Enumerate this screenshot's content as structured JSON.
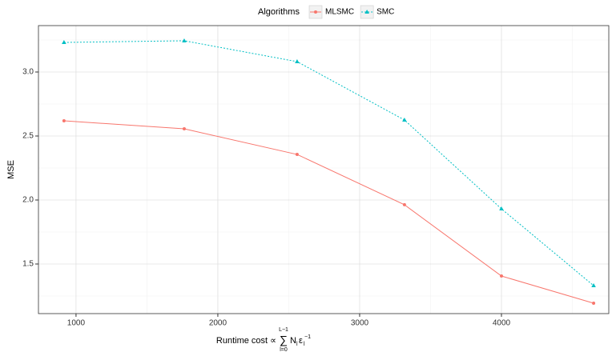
{
  "chart_data": {
    "type": "line",
    "x_label": {
      "prefix": "Runtime cost ∝",
      "sum": "∑",
      "upper": "L−1",
      "lower": "l=0",
      "n": "N",
      "n_sub": "l",
      "eps": "ε",
      "eps_sub": "l",
      "eps_sup": "−1"
    },
    "y_label": "MSE",
    "legend_title": "Algorithms",
    "legend_position": "top",
    "grid": true,
    "xlim": [
      735,
      4757
    ],
    "xticks": [
      1000,
      2000,
      3000,
      4000
    ],
    "minor_xticks": [
      1500,
      2500,
      3500,
      4500
    ],
    "ylim": [
      1.1125,
      3.3625
    ],
    "yticks": [
      {
        "value": 1.5,
        "label": "1.5"
      },
      {
        "value": 2,
        "label": "2.0"
      },
      {
        "value": 2.5,
        "label": "2.5"
      },
      {
        "value": 3,
        "label": "3.0"
      }
    ],
    "minor_yticks": [
      1.25,
      1.75,
      2.25,
      2.75,
      3.25
    ],
    "x": [
      915,
      1763,
      2559,
      3316,
      4000,
      4650
    ],
    "series": [
      {
        "name": "MLSMC",
        "color": "#F8766D",
        "marker": "circle",
        "dash": "solid",
        "values": [
          2.619,
          2.556,
          2.356,
          1.963,
          1.406,
          1.194
        ]
      },
      {
        "name": "SMC",
        "color": "#00BFC4",
        "marker": "triangle",
        "dash": "dotted",
        "values": [
          3.231,
          3.244,
          3.081,
          2.625,
          1.931,
          1.331
        ]
      }
    ]
  }
}
